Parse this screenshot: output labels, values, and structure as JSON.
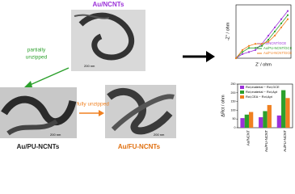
{
  "labels": {
    "top": "Au/NCNTs",
    "partial1": "partially",
    "partial2": "unzipped",
    "left": "Au/PU-NCNTs",
    "fully": "fully unzipped",
    "middle": "Au/FU-NCNTs",
    "scale1": "200 nm",
    "scale2": "200 nm",
    "scale3": "200 nm"
  },
  "chart_data": [
    {
      "type": "line",
      "x_label": "Z' / ohm",
      "y_label": "-Z'' / ohm",
      "x": [
        0,
        2,
        4,
        6,
        8,
        10,
        12,
        14,
        16
      ],
      "series": [
        {
          "name": "Au/NCNT/GCE",
          "color": "#9b30d9",
          "values": [
            0,
            1,
            1.5,
            2,
            3.5,
            5.5,
            7.5,
            9.5,
            11.5
          ]
        },
        {
          "name": "Au/PU-NCNT/GCE",
          "color": "#2ca02c",
          "values": [
            0,
            1.5,
            2.5,
            2.5,
            3,
            4.5,
            6.5,
            8.5,
            10.5
          ]
        },
        {
          "name": "Au/FU-NCNT/GCE",
          "color": "#f08020",
          "values": [
            0,
            2,
            3,
            3.5,
            3.5,
            4,
            5.5,
            7.5,
            9.5
          ]
        }
      ],
      "xlim": [
        0,
        17
      ],
      "ylim": [
        0,
        13
      ]
    },
    {
      "type": "bar",
      "y_label": "ΔRct / ohm",
      "categories": [
        "Au/NCNT",
        "Au/PU-NCNT",
        "Au/FU-NCNT"
      ],
      "series": [
        {
          "name": "Rct,material − Rct,GCE",
          "color": "#9b30d9",
          "values": [
            55,
            60,
            70
          ]
        },
        {
          "name": "Rct,material − Rct,Apt",
          "color": "#2ca02c",
          "values": [
            75,
            95,
            215
          ]
        },
        {
          "name": "Rct,CEA − Rct,Apt",
          "color": "#f08020",
          "values": [
            90,
            130,
            170
          ]
        }
      ],
      "ylim": [
        0,
        250
      ],
      "yticks": [
        0,
        50,
        100,
        150,
        200,
        250
      ]
    }
  ]
}
